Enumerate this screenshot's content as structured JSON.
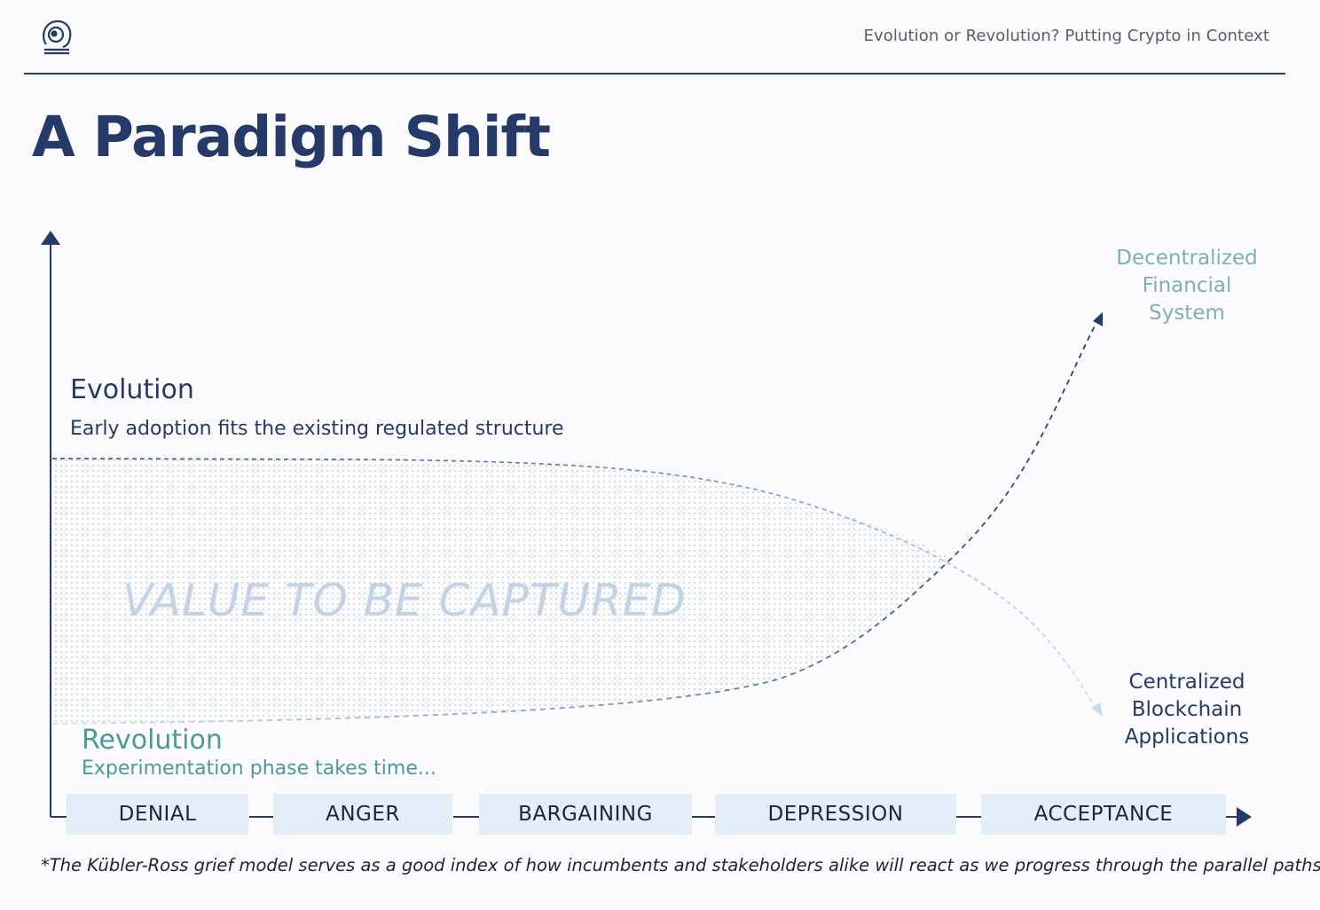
{
  "header": {
    "title": "Evolution or Revolution? Putting Crypto in Context",
    "logo_icon": "astronaut-helmet-icon"
  },
  "page_title": "A Paradigm Shift",
  "diagram": {
    "evolution": {
      "title": "Evolution",
      "subtitle": "Early adoption fits the existing regulated structure"
    },
    "revolution": {
      "title": "Revolution",
      "subtitle": "Experimentation phase takes time..."
    },
    "value_label": "VALUE TO BE CAPTURED",
    "decentralized_lines": [
      "Decentralized",
      "Financial",
      "System"
    ],
    "centralized_lines": [
      "Centralized",
      "Blockchain",
      "Applications"
    ],
    "stages": [
      "DENIAL",
      "ANGER",
      "BARGAINING",
      "DEPRESSION",
      "ACCEPTANCE"
    ]
  },
  "footnote": "*The Kübler-Ross grief model serves as a good index of how incumbents and stakeholders alike will react as we progress through the parallel paths",
  "colors": {
    "navy": "#253a68",
    "teal": "#4b9a96",
    "light_teal": "#7fb0b0",
    "stage_bg": "#e3eef9",
    "value_text": "#c4d2e5"
  }
}
